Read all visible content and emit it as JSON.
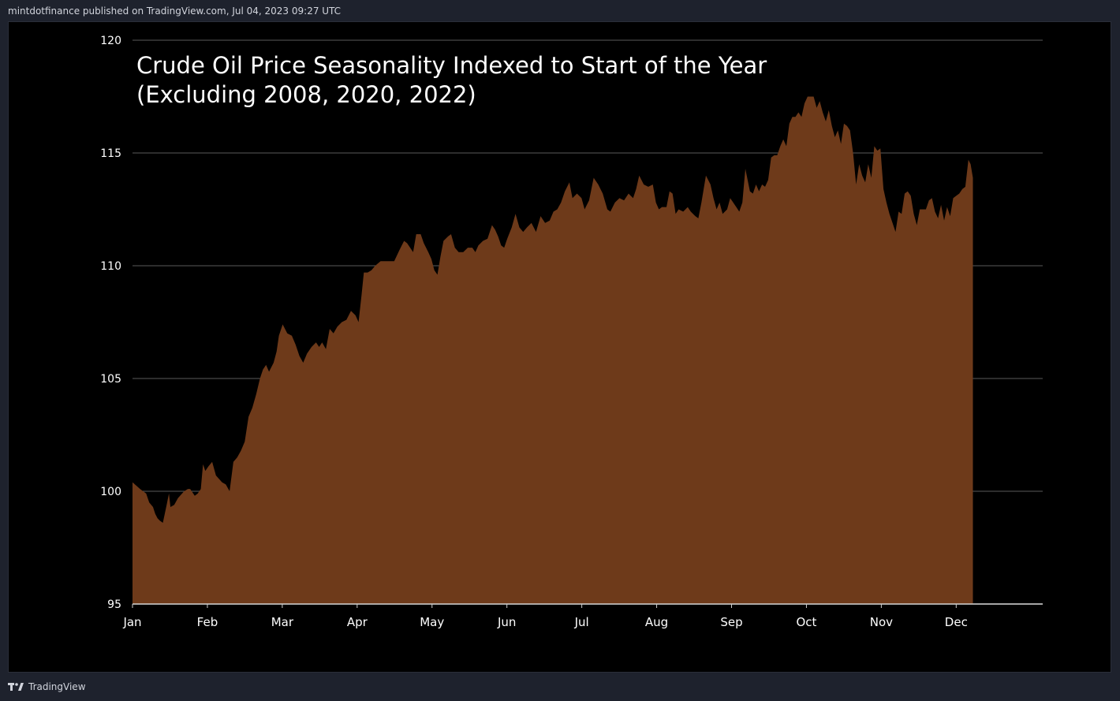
{
  "header": {
    "attribution": "mintdotfinance published on TradingView.com, Jul 04, 2023 09:27 UTC"
  },
  "footer": {
    "brand": "TradingView",
    "logo_icon": "tradingview-logo-icon"
  },
  "colors": {
    "background": "#000000",
    "area_fill": "#6e3a1a",
    "grid": "#5a5a5a",
    "text": "#ffffff"
  },
  "chart_data": {
    "type": "area",
    "title_lines": [
      "Crude Oil Price Seasonality Indexed to Start of the Year",
      "(Excluding 2008, 2020, 2022)"
    ],
    "x_ticks": [
      "Jan",
      "Feb",
      "Mar",
      "Apr",
      "May",
      "Jun",
      "Jul",
      "Aug",
      "Sep",
      "Oct",
      "Nov",
      "Dec"
    ],
    "y_ticks": [
      95,
      100,
      105,
      110,
      115,
      120
    ],
    "ylim": [
      95,
      120
    ],
    "xlim": [
      0,
      12
    ],
    "grid": "horizontal",
    "points": [
      [
        0.0,
        100.4
      ],
      [
        0.1,
        100.1
      ],
      [
        0.18,
        99.9
      ],
      [
        0.22,
        99.5
      ],
      [
        0.27,
        99.3
      ],
      [
        0.3,
        99.0
      ],
      [
        0.33,
        98.8
      ],
      [
        0.36,
        98.7
      ],
      [
        0.4,
        98.6
      ],
      [
        0.45,
        99.4
      ],
      [
        0.48,
        99.9
      ],
      [
        0.5,
        99.3
      ],
      [
        0.55,
        99.4
      ],
      [
        0.6,
        99.7
      ],
      [
        0.68,
        100.0
      ],
      [
        0.73,
        100.1
      ],
      [
        0.76,
        100.1
      ],
      [
        0.82,
        99.8
      ],
      [
        0.86,
        99.9
      ],
      [
        0.9,
        100.1
      ],
      [
        0.93,
        101.2
      ],
      [
        0.96,
        100.9
      ],
      [
        1.0,
        101.1
      ],
      [
        1.05,
        101.3
      ],
      [
        1.1,
        100.7
      ],
      [
        1.18,
        100.4
      ],
      [
        1.23,
        100.3
      ],
      [
        1.28,
        100.0
      ],
      [
        1.33,
        101.3
      ],
      [
        1.38,
        101.5
      ],
      [
        1.43,
        101.8
      ],
      [
        1.48,
        102.2
      ],
      [
        1.53,
        103.3
      ],
      [
        1.58,
        103.7
      ],
      [
        1.63,
        104.3
      ],
      [
        1.68,
        105.0
      ],
      [
        1.72,
        105.4
      ],
      [
        1.76,
        105.6
      ],
      [
        1.8,
        105.3
      ],
      [
        1.86,
        105.7
      ],
      [
        1.9,
        106.2
      ],
      [
        1.93,
        106.9
      ],
      [
        1.98,
        107.4
      ],
      [
        2.04,
        107.0
      ],
      [
        2.1,
        106.9
      ],
      [
        2.15,
        106.5
      ],
      [
        2.2,
        106.0
      ],
      [
        2.25,
        105.7
      ],
      [
        2.3,
        106.1
      ],
      [
        2.36,
        106.4
      ],
      [
        2.42,
        106.6
      ],
      [
        2.46,
        106.4
      ],
      [
        2.5,
        106.6
      ],
      [
        2.55,
        106.3
      ],
      [
        2.6,
        107.2
      ],
      [
        2.65,
        107.0
      ],
      [
        2.7,
        107.3
      ],
      [
        2.76,
        107.5
      ],
      [
        2.82,
        107.6
      ],
      [
        2.88,
        108.0
      ],
      [
        2.94,
        107.8
      ],
      [
        2.98,
        107.5
      ],
      [
        3.02,
        108.7
      ],
      [
        3.05,
        109.7
      ],
      [
        3.1,
        109.7
      ],
      [
        3.15,
        109.8
      ],
      [
        3.2,
        110.0
      ],
      [
        3.27,
        110.2
      ],
      [
        3.35,
        110.2
      ],
      [
        3.45,
        110.2
      ],
      [
        3.52,
        110.7
      ],
      [
        3.58,
        111.1
      ],
      [
        3.62,
        111.0
      ],
      [
        3.66,
        110.8
      ],
      [
        3.7,
        110.6
      ],
      [
        3.74,
        111.4
      ],
      [
        3.8,
        111.4
      ],
      [
        3.84,
        111.0
      ],
      [
        3.9,
        110.6
      ],
      [
        3.94,
        110.3
      ],
      [
        3.98,
        109.8
      ],
      [
        4.02,
        109.6
      ],
      [
        4.06,
        110.4
      ],
      [
        4.1,
        111.1
      ],
      [
        4.16,
        111.3
      ],
      [
        4.2,
        111.4
      ],
      [
        4.25,
        110.8
      ],
      [
        4.3,
        110.6
      ],
      [
        4.36,
        110.6
      ],
      [
        4.42,
        110.8
      ],
      [
        4.48,
        110.8
      ],
      [
        4.52,
        110.6
      ],
      [
        4.56,
        110.9
      ],
      [
        4.62,
        111.1
      ],
      [
        4.68,
        111.2
      ],
      [
        4.74,
        111.8
      ],
      [
        4.78,
        111.6
      ],
      [
        4.82,
        111.3
      ],
      [
        4.86,
        110.9
      ],
      [
        4.9,
        110.8
      ],
      [
        4.94,
        111.2
      ],
      [
        5.0,
        111.7
      ],
      [
        5.05,
        112.3
      ],
      [
        5.1,
        111.7
      ],
      [
        5.15,
        111.5
      ],
      [
        5.2,
        111.7
      ],
      [
        5.26,
        111.9
      ],
      [
        5.32,
        111.5
      ],
      [
        5.38,
        112.2
      ],
      [
        5.44,
        111.9
      ],
      [
        5.5,
        112.0
      ],
      [
        5.55,
        112.4
      ],
      [
        5.6,
        112.5
      ],
      [
        5.65,
        112.8
      ],
      [
        5.7,
        113.3
      ],
      [
        5.76,
        113.7
      ],
      [
        5.8,
        113.0
      ],
      [
        5.86,
        113.2
      ],
      [
        5.92,
        113.0
      ],
      [
        5.96,
        112.5
      ],
      [
        6.02,
        112.9
      ],
      [
        6.08,
        113.9
      ],
      [
        6.14,
        113.6
      ],
      [
        6.2,
        113.2
      ],
      [
        6.26,
        112.5
      ],
      [
        6.3,
        112.4
      ],
      [
        6.36,
        112.8
      ],
      [
        6.42,
        113.0
      ],
      [
        6.48,
        112.9
      ],
      [
        6.54,
        113.2
      ],
      [
        6.6,
        113.0
      ],
      [
        6.64,
        113.4
      ],
      [
        6.68,
        114.0
      ],
      [
        6.74,
        113.6
      ],
      [
        6.8,
        113.5
      ],
      [
        6.86,
        113.6
      ],
      [
        6.9,
        112.8
      ],
      [
        6.94,
        112.5
      ],
      [
        6.98,
        112.6
      ],
      [
        7.04,
        112.6
      ],
      [
        7.08,
        113.3
      ],
      [
        7.12,
        113.2
      ],
      [
        7.16,
        112.3
      ],
      [
        7.2,
        112.5
      ],
      [
        7.26,
        112.4
      ],
      [
        7.32,
        112.6
      ],
      [
        7.36,
        112.4
      ],
      [
        7.42,
        112.2
      ],
      [
        7.46,
        112.1
      ],
      [
        7.5,
        112.8
      ],
      [
        7.56,
        114.0
      ],
      [
        7.62,
        113.6
      ],
      [
        7.66,
        113.0
      ],
      [
        7.7,
        112.5
      ],
      [
        7.74,
        112.8
      ],
      [
        7.78,
        112.3
      ],
      [
        7.84,
        112.5
      ],
      [
        7.88,
        113.0
      ],
      [
        7.92,
        112.8
      ],
      [
        7.96,
        112.6
      ],
      [
        8.0,
        112.4
      ],
      [
        8.04,
        112.8
      ],
      [
        8.08,
        114.3
      ],
      [
        8.14,
        113.3
      ],
      [
        8.18,
        113.2
      ],
      [
        8.22,
        113.6
      ],
      [
        8.26,
        113.3
      ],
      [
        8.3,
        113.6
      ],
      [
        8.34,
        113.5
      ],
      [
        8.38,
        113.8
      ],
      [
        8.42,
        114.8
      ],
      [
        8.46,
        114.9
      ],
      [
        8.5,
        114.9
      ],
      [
        8.54,
        115.3
      ],
      [
        8.58,
        115.6
      ],
      [
        8.62,
        115.3
      ],
      [
        8.66,
        116.3
      ],
      [
        8.7,
        116.6
      ],
      [
        8.74,
        116.6
      ],
      [
        8.78,
        116.8
      ],
      [
        8.82,
        116.6
      ],
      [
        8.86,
        117.2
      ],
      [
        8.9,
        117.5
      ],
      [
        8.94,
        117.5
      ],
      [
        8.98,
        117.5
      ],
      [
        9.02,
        117.0
      ],
      [
        9.06,
        117.3
      ],
      [
        9.1,
        116.8
      ],
      [
        9.14,
        116.4
      ],
      [
        9.18,
        116.9
      ],
      [
        9.22,
        116.2
      ],
      [
        9.26,
        115.7
      ],
      [
        9.3,
        116.0
      ],
      [
        9.34,
        115.4
      ],
      [
        9.38,
        116.3
      ],
      [
        9.42,
        116.2
      ],
      [
        9.46,
        116.0
      ],
      [
        9.5,
        115.0
      ],
      [
        9.54,
        113.6
      ],
      [
        9.58,
        114.5
      ],
      [
        9.62,
        114.0
      ],
      [
        9.66,
        113.7
      ],
      [
        9.7,
        114.5
      ],
      [
        9.74,
        113.9
      ],
      [
        9.78,
        115.3
      ],
      [
        9.82,
        115.1
      ],
      [
        9.86,
        115.2
      ],
      [
        9.9,
        113.4
      ],
      [
        9.94,
        112.8
      ],
      [
        9.98,
        112.3
      ],
      [
        10.02,
        111.9
      ],
      [
        10.06,
        111.5
      ],
      [
        10.1,
        112.4
      ],
      [
        10.14,
        112.3
      ],
      [
        10.18,
        113.2
      ],
      [
        10.22,
        113.3
      ],
      [
        10.26,
        113.1
      ],
      [
        10.3,
        112.3
      ],
      [
        10.34,
        111.8
      ],
      [
        10.38,
        112.5
      ],
      [
        10.42,
        112.5
      ],
      [
        10.46,
        112.5
      ],
      [
        10.5,
        112.9
      ],
      [
        10.54,
        113.0
      ],
      [
        10.58,
        112.4
      ],
      [
        10.62,
        112.1
      ],
      [
        10.66,
        112.7
      ],
      [
        10.7,
        112.0
      ],
      [
        10.74,
        112.6
      ],
      [
        10.78,
        112.2
      ],
      [
        10.82,
        113.0
      ],
      [
        10.86,
        113.1
      ],
      [
        10.9,
        113.2
      ],
      [
        10.94,
        113.4
      ],
      [
        10.98,
        113.5
      ],
      [
        11.02,
        114.7
      ],
      [
        11.05,
        114.5
      ],
      [
        11.08,
        113.9
      ]
    ]
  }
}
